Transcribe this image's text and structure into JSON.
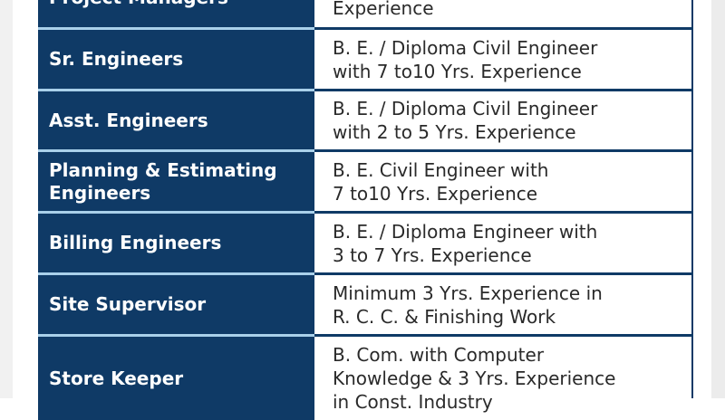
{
  "rows": [
    {
      "role": "Project Managers",
      "req": [
        "Experience"
      ]
    },
    {
      "role": "Sr. Engineers",
      "req": [
        "B. E. / Diploma Civil Engineer",
        "with 7 to10 Yrs. Experience"
      ]
    },
    {
      "role": "Asst. Engineers",
      "req": [
        "B. E. / Diploma Civil Engineer",
        "with 2 to 5 Yrs. Experience"
      ]
    },
    {
      "role": "Planning & Estimating Engineers",
      "req": [
        "B. E. Civil Engineer with",
        "7 to10 Yrs. Experience"
      ]
    },
    {
      "role": "Billing Engineers",
      "req": [
        "B. E. / Diploma Engineer with",
        "3 to 7 Yrs. Experience"
      ]
    },
    {
      "role": "Site Supervisor",
      "req": [
        "Minimum 3 Yrs. Experience in",
        "R. C. C. & Finishing Work"
      ]
    },
    {
      "role": "Store Keeper",
      "req": [
        "B. Com. with Computer",
        "Knowledge & 3 Yrs. Experience",
        "in Const. Industry"
      ]
    }
  ],
  "colors": {
    "header_bg": "#0f3a66",
    "separator": "#a9d0ea"
  }
}
